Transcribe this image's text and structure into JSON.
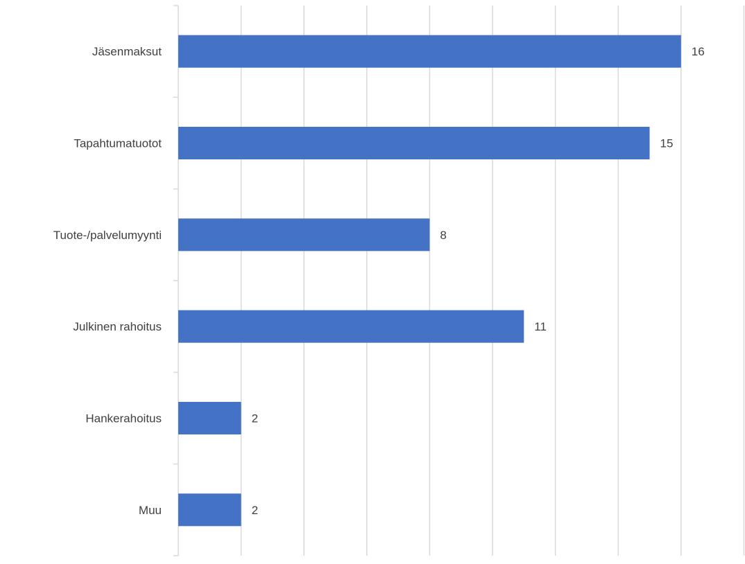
{
  "chart_data": {
    "type": "bar",
    "orientation": "horizontal",
    "categories": [
      "Jäsenmaksut",
      "Tapahtumatuotot",
      "Tuote-/palvelumyynti",
      "Julkinen rahoitus",
      "Hankerahoitus",
      "Muu"
    ],
    "values": [
      16,
      15,
      8,
      11,
      2,
      2
    ],
    "title": "",
    "xlabel": "",
    "ylabel": "",
    "xlim": [
      0,
      18
    ],
    "grid": true,
    "data_labels": true,
    "legend": "none",
    "bar_color": "#4472C4",
    "grid_color": "#D9D9D9",
    "text_color": "#404040"
  }
}
